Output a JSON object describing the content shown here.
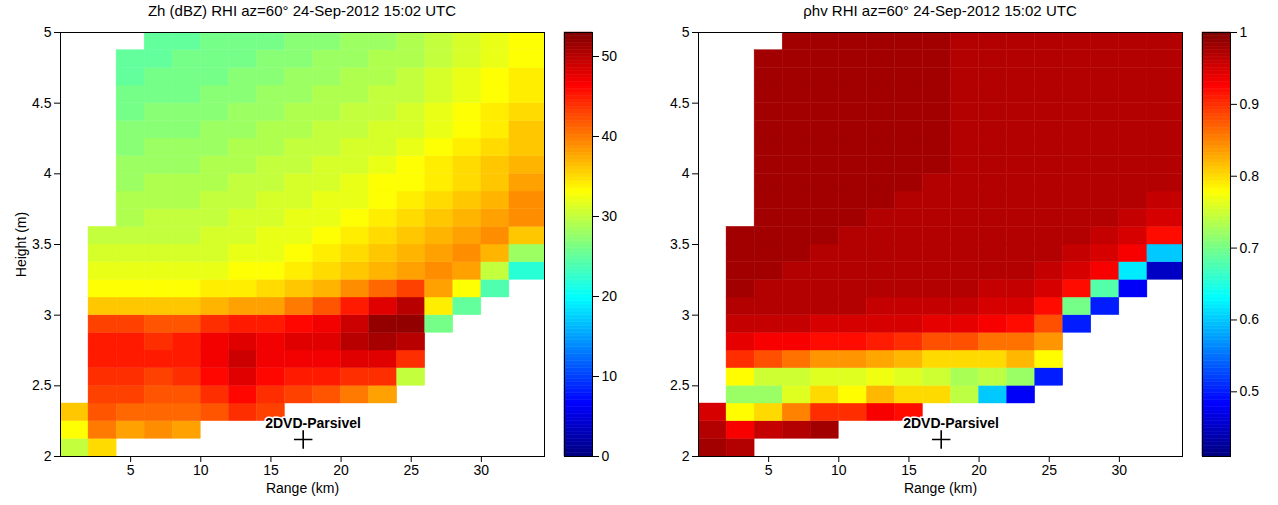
{
  "chart_data": [
    {
      "type": "heatmap",
      "title": "Zh (dBZ) RHI az=60° 24-Sep-2012 15:02 UTC",
      "x_label": "Range (km)",
      "y_label": "Height (m)",
      "xlim": [
        0,
        34.5
      ],
      "ylim": [
        2,
        5
      ],
      "xticks": [
        5,
        10,
        15,
        20,
        25,
        30
      ],
      "yticks": [
        2,
        2.5,
        3,
        3.5,
        4,
        4.5,
        5
      ],
      "color": "jet",
      "color_range": [
        0,
        53
      ],
      "color_ticks": [
        0,
        10,
        20,
        30,
        40,
        50
      ],
      "x_edges": [
        0,
        2,
        4,
        6,
        8,
        10,
        12,
        14,
        16,
        18,
        20,
        22,
        24,
        26,
        28,
        30,
        32,
        34.5
      ],
      "y_edges": [
        2,
        2.125,
        2.25,
        2.375,
        2.5,
        2.625,
        2.75,
        2.875,
        3,
        3.125,
        3.25,
        3.375,
        3.5,
        3.625,
        3.75,
        3.875,
        4,
        4.125,
        4.25,
        4.375,
        4.5,
        4.625,
        4.75,
        4.875,
        5
      ],
      "cells": [
        [
          30,
          35,
          null,
          null,
          null,
          null,
          null,
          null,
          null,
          null,
          null,
          null,
          null,
          null,
          null,
          null,
          null
        ],
        [
          33,
          40,
          38,
          39,
          38,
          null,
          null,
          null,
          null,
          null,
          null,
          null,
          null,
          null,
          null,
          null,
          null
        ],
        [
          36,
          42,
          41,
          41,
          41,
          42,
          44,
          43,
          null,
          null,
          null,
          null,
          null,
          null,
          null,
          null,
          null
        ],
        [
          null,
          43,
          43,
          42,
          42,
          44,
          46,
          44,
          43,
          42,
          40,
          38,
          null,
          null,
          null,
          null,
          null
        ],
        [
          null,
          44,
          44,
          43,
          44,
          46,
          48,
          46,
          45,
          45,
          44,
          44,
          30,
          null,
          null,
          null,
          null
        ],
        [
          null,
          45,
          45,
          45,
          45,
          47,
          49,
          47,
          47,
          47,
          48,
          48,
          44,
          null,
          null,
          null,
          null
        ],
        [
          null,
          45,
          45,
          44,
          45,
          47,
          48,
          47,
          48,
          48,
          50,
          51,
          50,
          null,
          null,
          null,
          null
        ],
        [
          null,
          43,
          43,
          42,
          42,
          44,
          45,
          45,
          46,
          47,
          49,
          52,
          52,
          26,
          null,
          null,
          null
        ],
        [
          null,
          36,
          36,
          36,
          36,
          37,
          38,
          38,
          40,
          42,
          45,
          48,
          50,
          34,
          25,
          null,
          null
        ],
        [
          null,
          33,
          33,
          33,
          33,
          34,
          34,
          35,
          36,
          37,
          39,
          41,
          43,
          38,
          33,
          24,
          null
        ],
        [
          null,
          32,
          32,
          32,
          32,
          32,
          33,
          33,
          34,
          35,
          36,
          37,
          38,
          39,
          38,
          30,
          22
        ],
        [
          null,
          31,
          31,
          31,
          31,
          31,
          32,
          32,
          33,
          34,
          35,
          36,
          37,
          38,
          39,
          37,
          28
        ],
        [
          null,
          30,
          30,
          30,
          30,
          31,
          31,
          32,
          32,
          33,
          34,
          35,
          36,
          37,
          38,
          39,
          36
        ],
        [
          null,
          null,
          29,
          30,
          30,
          30,
          31,
          31,
          32,
          32,
          33,
          34,
          35,
          36,
          37,
          38,
          39
        ],
        [
          null,
          null,
          29,
          29,
          29,
          30,
          30,
          31,
          31,
          32,
          32,
          33,
          34,
          35,
          36,
          37,
          39
        ],
        [
          null,
          null,
          28,
          29,
          29,
          29,
          30,
          30,
          31,
          31,
          32,
          33,
          33,
          34,
          35,
          36,
          38
        ],
        [
          null,
          null,
          28,
          28,
          28,
          29,
          29,
          30,
          30,
          31,
          31,
          32,
          33,
          34,
          35,
          36,
          37
        ],
        [
          null,
          null,
          27,
          28,
          28,
          28,
          29,
          29,
          30,
          30,
          31,
          31,
          32,
          33,
          34,
          35,
          36
        ],
        [
          null,
          null,
          27,
          27,
          27,
          28,
          28,
          29,
          29,
          30,
          30,
          31,
          31,
          32,
          33,
          34,
          36
        ],
        [
          null,
          null,
          26,
          27,
          27,
          27,
          28,
          28,
          29,
          29,
          30,
          30,
          31,
          32,
          33,
          34,
          35
        ],
        [
          null,
          null,
          26,
          26,
          26,
          27,
          27,
          28,
          28,
          29,
          29,
          30,
          30,
          31,
          32,
          33,
          34
        ],
        [
          null,
          null,
          25,
          26,
          26,
          26,
          27,
          27,
          28,
          28,
          29,
          29,
          30,
          31,
          32,
          33,
          34
        ],
        [
          null,
          null,
          25,
          25,
          26,
          26,
          26,
          27,
          27,
          28,
          28,
          29,
          29,
          30,
          31,
          32,
          33
        ],
        [
          null,
          null,
          null,
          25,
          25,
          26,
          26,
          26,
          27,
          27,
          28,
          28,
          29,
          30,
          31,
          32,
          33
        ]
      ],
      "annotations": [
        {
          "text": "2DVD-Parsivel",
          "x": 17.3,
          "y": 2.12,
          "marker": "+"
        }
      ]
    },
    {
      "type": "heatmap",
      "title": "ρhv RHI az=60° 24-Sep-2012 15:02 UTC",
      "x_label": "Range (km)",
      "xlim": [
        0,
        34.5
      ],
      "ylim": [
        2,
        5
      ],
      "xticks": [
        5,
        10,
        15,
        20,
        25,
        30
      ],
      "yticks": [
        2,
        2.5,
        3,
        3.5,
        4,
        4.5,
        5
      ],
      "color": "jet",
      "color_range": [
        0.41,
        1
      ],
      "color_ticks": [
        0.5,
        0.6,
        0.7,
        0.8,
        0.9,
        1
      ],
      "x_edges": [
        0,
        2,
        4,
        6,
        8,
        10,
        12,
        14,
        16,
        18,
        20,
        22,
        24,
        26,
        28,
        30,
        32,
        34.5
      ],
      "y_edges": [
        2,
        2.125,
        2.25,
        2.375,
        2.5,
        2.625,
        2.75,
        2.875,
        3,
        3.125,
        3.25,
        3.375,
        3.5,
        3.625,
        3.75,
        3.875,
        4,
        4.125,
        4.25,
        4.375,
        4.5,
        4.625,
        4.75,
        4.875,
        5
      ],
      "cells": [
        [
          0.98,
          0.97,
          null,
          null,
          null,
          null,
          null,
          null,
          null,
          null,
          null,
          null,
          null,
          null,
          null,
          null,
          null
        ],
        [
          0.97,
          0.93,
          0.96,
          0.97,
          0.98,
          null,
          null,
          null,
          null,
          null,
          null,
          null,
          null,
          null,
          null,
          null,
          null
        ],
        [
          0.95,
          0.78,
          0.8,
          0.85,
          0.9,
          0.9,
          0.93,
          0.92,
          null,
          null,
          null,
          null,
          null,
          null,
          null,
          null,
          null
        ],
        [
          null,
          0.72,
          0.72,
          0.76,
          0.8,
          0.78,
          0.82,
          0.8,
          0.8,
          0.74,
          0.6,
          0.48,
          null,
          null,
          null,
          null,
          null
        ],
        [
          null,
          0.78,
          0.75,
          0.75,
          0.76,
          0.76,
          0.77,
          0.76,
          0.75,
          0.73,
          0.74,
          0.72,
          0.5,
          null,
          null,
          null,
          null
        ],
        [
          null,
          0.9,
          0.88,
          0.86,
          0.84,
          0.84,
          0.83,
          0.82,
          0.8,
          0.8,
          0.8,
          0.82,
          0.78,
          null,
          null,
          null,
          null
        ],
        [
          null,
          0.94,
          0.93,
          0.93,
          0.92,
          0.92,
          0.91,
          0.9,
          0.88,
          0.88,
          0.86,
          0.86,
          0.84,
          null,
          null,
          null,
          null
        ],
        [
          null,
          0.96,
          0.96,
          0.96,
          0.95,
          0.95,
          0.95,
          0.95,
          0.94,
          0.94,
          0.93,
          0.92,
          0.88,
          0.5,
          null,
          null,
          null
        ],
        [
          null,
          0.97,
          0.97,
          0.97,
          0.97,
          0.97,
          0.96,
          0.96,
          0.96,
          0.96,
          0.95,
          0.95,
          0.92,
          0.7,
          0.5,
          null,
          null
        ],
        [
          null,
          0.98,
          0.97,
          0.97,
          0.97,
          0.97,
          0.97,
          0.97,
          0.97,
          0.97,
          0.96,
          0.96,
          0.95,
          0.92,
          0.68,
          0.48,
          null
        ],
        [
          null,
          0.98,
          0.98,
          0.97,
          0.97,
          0.97,
          0.97,
          0.97,
          0.97,
          0.97,
          0.97,
          0.97,
          0.96,
          0.95,
          0.93,
          0.62,
          0.45
        ],
        [
          null,
          0.98,
          0.98,
          0.98,
          0.97,
          0.97,
          0.97,
          0.97,
          0.97,
          0.97,
          0.97,
          0.97,
          0.97,
          0.96,
          0.95,
          0.93,
          0.6
        ],
        [
          null,
          0.98,
          0.98,
          0.98,
          0.98,
          0.97,
          0.97,
          0.97,
          0.97,
          0.97,
          0.97,
          0.97,
          0.97,
          0.97,
          0.96,
          0.95,
          0.92
        ],
        [
          null,
          null,
          0.98,
          0.98,
          0.98,
          0.98,
          0.97,
          0.97,
          0.97,
          0.97,
          0.97,
          0.97,
          0.97,
          0.97,
          0.97,
          0.96,
          0.95
        ],
        [
          null,
          null,
          0.98,
          0.98,
          0.98,
          0.98,
          0.98,
          0.97,
          0.97,
          0.97,
          0.97,
          0.97,
          0.97,
          0.97,
          0.97,
          0.97,
          0.96
        ],
        [
          null,
          null,
          0.98,
          0.98,
          0.98,
          0.98,
          0.98,
          0.98,
          0.97,
          0.97,
          0.97,
          0.97,
          0.97,
          0.97,
          0.97,
          0.97,
          0.97
        ],
        [
          null,
          null,
          0.98,
          0.98,
          0.98,
          0.98,
          0.98,
          0.98,
          0.98,
          0.97,
          0.97,
          0.97,
          0.97,
          0.97,
          0.97,
          0.97,
          0.97
        ],
        [
          null,
          null,
          0.98,
          0.98,
          0.98,
          0.98,
          0.98,
          0.98,
          0.98,
          0.97,
          0.97,
          0.97,
          0.97,
          0.97,
          0.97,
          0.97,
          0.97
        ],
        [
          null,
          null,
          0.98,
          0.98,
          0.98,
          0.98,
          0.98,
          0.98,
          0.98,
          0.97,
          0.97,
          0.97,
          0.97,
          0.97,
          0.97,
          0.97,
          0.97
        ],
        [
          null,
          null,
          0.98,
          0.98,
          0.98,
          0.98,
          0.98,
          0.98,
          0.98,
          0.97,
          0.97,
          0.97,
          0.97,
          0.97,
          0.97,
          0.97,
          0.97
        ],
        [
          null,
          null,
          0.98,
          0.98,
          0.98,
          0.98,
          0.98,
          0.98,
          0.98,
          0.97,
          0.97,
          0.97,
          0.97,
          0.97,
          0.97,
          0.97,
          0.97
        ],
        [
          null,
          null,
          0.98,
          0.98,
          0.98,
          0.98,
          0.98,
          0.98,
          0.98,
          0.97,
          0.97,
          0.97,
          0.97,
          0.97,
          0.97,
          0.97,
          0.97
        ],
        [
          null,
          null,
          0.98,
          0.98,
          0.98,
          0.98,
          0.98,
          0.98,
          0.98,
          0.97,
          0.97,
          0.97,
          0.97,
          0.97,
          0.97,
          0.97,
          0.97
        ],
        [
          null,
          null,
          null,
          0.98,
          0.98,
          0.98,
          0.98,
          0.98,
          0.98,
          0.97,
          0.97,
          0.97,
          0.97,
          0.97,
          0.97,
          0.97,
          0.97
        ]
      ],
      "annotations": [
        {
          "text": "2DVD-Parsivel",
          "x": 17.3,
          "y": 2.12,
          "marker": "+"
        }
      ]
    }
  ]
}
